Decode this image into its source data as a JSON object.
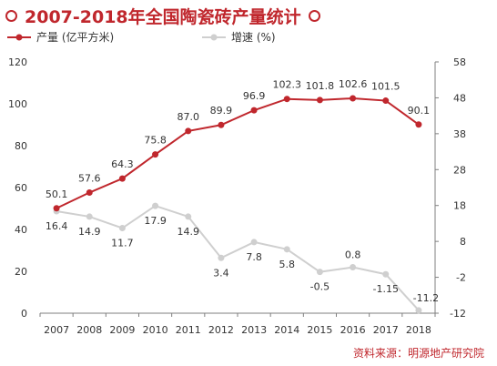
{
  "title": "2007-2018年全国陶瓷砖产量统计",
  "source": "资料来源：明源地产研究院",
  "colors": {
    "production": "#c0272d",
    "growth": "#cfcfcf"
  },
  "chart_data": {
    "type": "line",
    "categories": [
      "2007",
      "2008",
      "2009",
      "2010",
      "2011",
      "2012",
      "2013",
      "2014",
      "2015",
      "2016",
      "2017",
      "2018"
    ],
    "series": [
      {
        "name": "产量 (亿平方米)",
        "axis": "left",
        "values": [
          50.1,
          57.6,
          64.3,
          75.8,
          87.0,
          89.9,
          96.9,
          102.3,
          101.8,
          102.6,
          101.5,
          90.1
        ],
        "labels": [
          "50.1",
          "57.6",
          "64.3",
          "75.8",
          "87.0",
          "89.9",
          "96.9",
          "102.3",
          "101.8",
          "102.6",
          "101.5",
          "90.1"
        ]
      },
      {
        "name": "增速 (%)",
        "axis": "right",
        "values": [
          16.4,
          14.9,
          11.7,
          17.9,
          14.9,
          3.4,
          7.8,
          5.8,
          -0.5,
          0.8,
          -1.15,
          -11.2
        ],
        "labels": [
          "16.4",
          "14.9",
          "11.7",
          "17.9",
          "14.9",
          "3.4",
          "7.8",
          "5.8",
          "-0.5",
          "0.8",
          "-1.15",
          "-11.2"
        ]
      }
    ],
    "y_left": {
      "ticks": [
        0,
        20,
        40,
        60,
        80,
        100,
        120
      ],
      "ylim": [
        0,
        120
      ]
    },
    "y_right": {
      "ticks": [
        -12,
        -2,
        8,
        18,
        28,
        38,
        48,
        58
      ],
      "ylim": [
        -12,
        58
      ]
    },
    "grid": false,
    "legend_position": "top-left"
  }
}
